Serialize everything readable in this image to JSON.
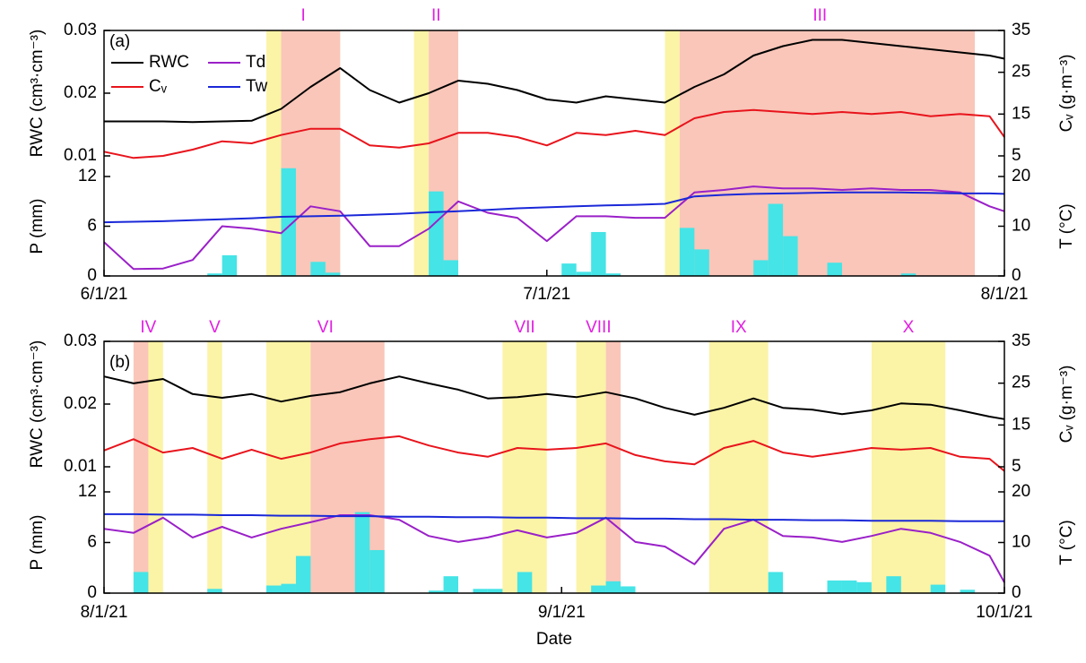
{
  "chart_data": [
    {
      "type": "line",
      "label": "(a)",
      "legend": "upper left",
      "x": [
        "6/1/21",
        "6/3/21",
        "6/5/21",
        "6/7/21",
        "6/9/21",
        "6/11/21",
        "6/13/21",
        "6/15/21",
        "6/17/21",
        "6/19/21",
        "6/21/21",
        "6/23/21",
        "6/25/21",
        "6/27/21",
        "6/29/21",
        "7/1/21",
        "7/3/21",
        "7/5/21",
        "7/7/21",
        "7/9/21",
        "7/11/21",
        "7/13/21",
        "7/15/21",
        "7/17/21",
        "7/19/21",
        "7/21/21",
        "7/23/21",
        "7/25/21",
        "7/27/21",
        "7/29/21",
        "7/31/21",
        "8/1/21"
      ],
      "xlim": [
        "6/1/21",
        "8/1/21"
      ],
      "xticks": [
        "6/1/21",
        "7/1/21",
        "8/1/21"
      ],
      "spans": [
        {
          "label": "I",
          "parts": [
            {
              "start": "6/12/21",
              "end": "6/13/21",
              "color": "#fbf3a6"
            },
            {
              "start": "6/13/21",
              "end": "6/17/21",
              "color": "#f9c6b9"
            }
          ]
        },
        {
          "label": "II",
          "parts": [
            {
              "start": "6/22/21",
              "end": "6/23/21",
              "color": "#fbf3a6"
            },
            {
              "start": "6/23/21",
              "end": "6/25/21",
              "color": "#f9c6b9"
            }
          ]
        },
        {
          "label": "III",
          "parts": [
            {
              "start": "7/9/21",
              "end": "7/10/21",
              "color": "#fbf3a6"
            },
            {
              "start": "7/10/21",
              "end": "7/30/21",
              "color": "#f9c6b9"
            }
          ]
        }
      ],
      "top": {
        "ylabel": "RWC (cm³·cm⁻³)",
        "ylim": [
          0.01,
          0.03
        ],
        "yticks": [
          0.01,
          0.02,
          0.03
        ],
        "y2label": "Cᵥ (g·m⁻³)",
        "y2lim": [
          5,
          35
        ],
        "y2ticks": [
          5,
          15,
          25,
          35
        ],
        "series": [
          {
            "name": "RWC",
            "color": "#000000",
            "values": [
              0.0155,
              0.0155,
              0.0155,
              0.0154,
              0.0155,
              0.0156,
              0.0175,
              0.021,
              0.024,
              0.0205,
              0.0185,
              0.02,
              0.022,
              0.0215,
              0.0205,
              0.019,
              0.0185,
              0.0195,
              0.019,
              0.0185,
              0.021,
              0.023,
              0.026,
              0.0275,
              0.0285,
              0.0285,
              0.028,
              0.0275,
              0.027,
              0.0265,
              0.026,
              0.0255
            ]
          },
          {
            "name": "Cᵥ",
            "color": "#e8141c",
            "axis": "y2",
            "values": [
              6,
              4.5,
              5,
              6.5,
              8.5,
              8,
              10,
              11.5,
              11.5,
              7.5,
              7,
              8,
              10.5,
              10.5,
              9.5,
              7.5,
              10.5,
              10,
              11,
              10,
              14,
              15.5,
              16,
              15.5,
              15,
              15.5,
              15,
              15.5,
              14.5,
              15,
              14.5,
              9.5
            ]
          }
        ]
      },
      "bottom": {
        "ylabel": "P (mm)",
        "ylim": [
          0,
          12
        ],
        "yticks": [
          0,
          6,
          12
        ],
        "y2label": "T (°C)",
        "y2lim": [
          0,
          20
        ],
        "y2ticks": [
          0,
          10,
          20
        ],
        "bars": {
          "color": "#45e4e6",
          "x": [
            "6/8/21",
            "6/9/21",
            "6/13/21",
            "6/15/21",
            "6/16/21",
            "6/23/21",
            "6/24/21",
            "7/2/21",
            "7/3/21",
            "7/4/21",
            "7/5/21",
            "7/10/21",
            "7/11/21",
            "7/15/21",
            "7/16/21",
            "7/17/21",
            "7/20/21",
            "7/25/21"
          ],
          "values": [
            0.3,
            2.5,
            13,
            1.7,
            0.4,
            10.2,
            1.9,
            1.5,
            0.5,
            5.3,
            0.3,
            5.8,
            3.2,
            1.9,
            8.7,
            4.8,
            1.6,
            0.3
          ]
        },
        "series": [
          {
            "name": "Td",
            "color": "#9a20c8",
            "axis": "y2",
            "values": [
              6.8,
              1.4,
              1.5,
              3.2,
              10,
              9.5,
              8.6,
              14,
              13,
              6,
              6,
              9.5,
              15,
              12.7,
              11.7,
              7,
              12,
              12,
              11.7,
              11.7,
              16.8,
              17.3,
              18,
              17.6,
              17.6,
              17.3,
              17.6,
              17.3,
              17.3,
              16.8,
              14,
              13
            ]
          },
          {
            "name": "Tw",
            "color": "#1a28d8",
            "axis": "y2",
            "values": [
              10.8,
              10.9,
              11.0,
              11.2,
              11.4,
              11.6,
              11.9,
              12.0,
              12.1,
              12.3,
              12.5,
              12.8,
              13.0,
              13.3,
              13.6,
              13.8,
              14.0,
              14.2,
              14.3,
              14.5,
              16.0,
              16.3,
              16.5,
              16.6,
              16.7,
              16.8,
              16.8,
              16.8,
              16.7,
              16.6,
              16.6,
              16.5
            ]
          }
        ]
      }
    },
    {
      "type": "line",
      "label": "(b)",
      "xlabel": "Date",
      "x": [
        "8/1/21",
        "8/3/21",
        "8/5/21",
        "8/7/21",
        "8/9/21",
        "8/11/21",
        "8/13/21",
        "8/15/21",
        "8/17/21",
        "8/19/21",
        "8/21/21",
        "8/23/21",
        "8/25/21",
        "8/27/21",
        "8/29/21",
        "8/31/21",
        "9/2/21",
        "9/4/21",
        "9/6/21",
        "9/8/21",
        "9/10/21",
        "9/12/21",
        "9/14/21",
        "9/16/21",
        "9/18/21",
        "9/20/21",
        "9/22/21",
        "9/24/21",
        "9/26/21",
        "9/28/21",
        "9/30/21",
        "10/1/21"
      ],
      "xlim": [
        "8/1/21",
        "10/1/21"
      ],
      "xticks": [
        "8/1/21",
        "9/1/21",
        "10/1/21"
      ],
      "spans": [
        {
          "label": "IV",
          "parts": [
            {
              "start": "8/3/21",
              "end": "8/5/21",
              "color": "#fbf3a6"
            },
            {
              "start": "8/3/21",
              "end": "8/4/21",
              "color": "#f9c6b9"
            }
          ]
        },
        {
          "label": "V",
          "parts": [
            {
              "start": "8/8/21",
              "end": "8/9/21",
              "color": "#fbf3a6"
            }
          ]
        },
        {
          "label": "VI",
          "parts": [
            {
              "start": "8/12/21",
              "end": "8/15/21",
              "color": "#fbf3a6"
            },
            {
              "start": "8/15/21",
              "end": "8/20/21",
              "color": "#f9c6b9"
            }
          ]
        },
        {
          "label": "VII",
          "parts": [
            {
              "start": "8/28/21",
              "end": "8/31/21",
              "color": "#fbf3a6"
            }
          ]
        },
        {
          "label": "VIII",
          "parts": [
            {
              "start": "9/2/21",
              "end": "9/4/21",
              "color": "#fbf3a6"
            },
            {
              "start": "9/4/21",
              "end": "9/5/21",
              "color": "#f9c6b9"
            }
          ]
        },
        {
          "label": "IX",
          "parts": [
            {
              "start": "9/11/21",
              "end": "9/15/21",
              "color": "#fbf3a6"
            }
          ]
        },
        {
          "label": "X",
          "parts": [
            {
              "start": "9/22/21",
              "end": "9/27/21",
              "color": "#fbf3a6"
            }
          ]
        }
      ],
      "top": {
        "ylabel": "RWC (cm³·cm⁻³)",
        "ylim": [
          0.01,
          0.03
        ],
        "yticks": [
          0.01,
          0.02,
          0.03
        ],
        "y2label": "Cᵥ (g·m⁻³)",
        "y2lim": [
          5,
          35
        ],
        "y2ticks": [
          5,
          15,
          25,
          35
        ],
        "series": [
          {
            "name": "RWC",
            "color": "#000000",
            "values": [
              0.0244,
              0.0233,
              0.024,
              0.0216,
              0.021,
              0.0216,
              0.0204,
              0.0213,
              0.0219,
              0.0233,
              0.0244,
              0.0233,
              0.0223,
              0.0209,
              0.0211,
              0.0216,
              0.0211,
              0.0219,
              0.0209,
              0.0194,
              0.0183,
              0.0194,
              0.0209,
              0.0194,
              0.0191,
              0.0184,
              0.019,
              0.0201,
              0.0199,
              0.019,
              0.018,
              0.0176
            ]
          },
          {
            "name": "Cᵥ",
            "color": "#e8141c",
            "axis": "y2",
            "values": [
              8.9,
              11.6,
              8.4,
              9.5,
              6.9,
              9.1,
              6.9,
              8.4,
              10.6,
              11.6,
              12.3,
              10.1,
              8.4,
              7.4,
              9.5,
              9.1,
              9.5,
              10.6,
              7.8,
              6.3,
              5.6,
              9.5,
              11.2,
              8.4,
              7.4,
              8.4,
              9.5,
              9.1,
              9.5,
              7.4,
              6.9,
              4
            ]
          }
        ]
      },
      "bottom": {
        "ylabel": "P (mm)",
        "ylim": [
          0,
          12
        ],
        "yticks": [
          0,
          6,
          12
        ],
        "y2label": "T (°C)",
        "y2lim": [
          0,
          20
        ],
        "y2ticks": [
          0,
          10,
          20
        ],
        "bars": {
          "color": "#45e4e6",
          "x": [
            "8/3/21",
            "8/8/21",
            "8/12/21",
            "8/13/21",
            "8/14/21",
            "8/18/21",
            "8/19/21",
            "8/23/21",
            "8/24/21",
            "8/26/21",
            "8/27/21",
            "8/29/21",
            "9/3/21",
            "9/4/21",
            "9/5/21",
            "9/15/21",
            "9/19/21",
            "9/20/21",
            "9/21/21",
            "9/23/21",
            "9/26/21",
            "9/28/21"
          ],
          "values": [
            2.5,
            0.5,
            0.9,
            1.1,
            4.4,
            9.6,
            5.1,
            0.3,
            2.0,
            0.5,
            0.5,
            2.5,
            0.9,
            1.4,
            0.8,
            2.5,
            1.5,
            1.5,
            1.3,
            2.0,
            1.0,
            0.4
          ]
        },
        "series": [
          {
            "name": "Td",
            "color": "#9a20c8",
            "axis": "y2",
            "values": [
              12.7,
              11.9,
              14.9,
              11,
              13.1,
              11,
              12.7,
              14,
              15.4,
              15.4,
              14.5,
              11.3,
              10.1,
              11,
              12.4,
              11,
              11.9,
              14.9,
              10.1,
              9.2,
              5.7,
              12.7,
              14.5,
              11.3,
              11,
              10.1,
              11.3,
              12.7,
              11.9,
              10.1,
              7.4,
              2.1
            ]
          },
          {
            "name": "Tw",
            "color": "#1a28d8",
            "axis": "y2",
            "values": [
              15.6,
              15.6,
              15.5,
              15.5,
              15.4,
              15.4,
              15.3,
              15.3,
              15.2,
              15.2,
              15.1,
              15.1,
              15.0,
              15.0,
              14.9,
              14.9,
              14.8,
              14.8,
              14.7,
              14.7,
              14.6,
              14.6,
              14.5,
              14.5,
              14.4,
              14.4,
              14.3,
              14.3,
              14.3,
              14.2,
              14.2,
              14.2
            ]
          }
        ]
      }
    }
  ]
}
